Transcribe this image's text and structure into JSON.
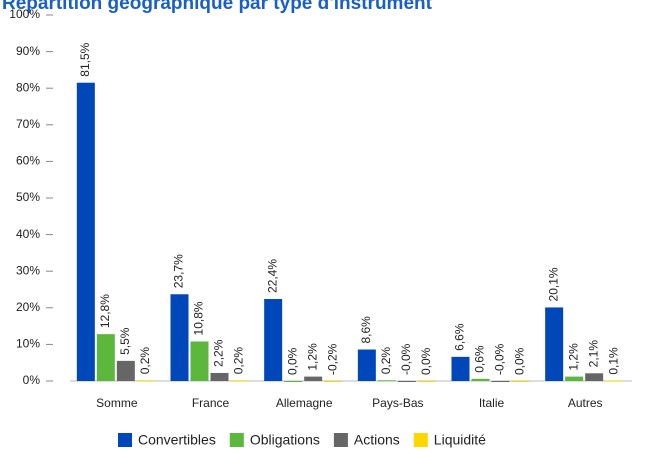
{
  "chart_data": {
    "type": "bar",
    "title": "Répartition géographique par type d'instrument",
    "categories": [
      "Somme",
      "France",
      "Allemagne",
      "Pays-Bas",
      "Italie",
      "Autres"
    ],
    "series": [
      {
        "name": "Convertibles",
        "color": "#0047ba",
        "values": [
          81.5,
          23.7,
          22.4,
          8.6,
          6.6,
          20.1
        ],
        "value_labels": [
          "81,5%",
          "23,7%",
          "22,4%",
          "8,6%",
          "6,6%",
          "20,1%"
        ]
      },
      {
        "name": "Obligations",
        "color": "#5cb83c",
        "values": [
          12.8,
          10.8,
          0.0,
          0.2,
          0.6,
          1.2
        ],
        "value_labels": [
          "12,8%",
          "10,8%",
          "0,0%",
          "0,2%",
          "0,6%",
          "1,2%"
        ]
      },
      {
        "name": "Actions",
        "color": "#666666",
        "values": [
          5.5,
          2.2,
          1.2,
          -0.0,
          -0.0,
          2.1
        ],
        "value_labels": [
          "5,5%",
          "2,2%",
          "1,2%",
          "-0,0%",
          "-0,0%",
          "2,1%"
        ]
      },
      {
        "name": "Liquidité",
        "color": "#ffd700",
        "values": [
          0.2,
          0.2,
          -0.2,
          0.0,
          0.0,
          0.1
        ],
        "value_labels": [
          "0,2%",
          "0,2%",
          "-0,2%",
          "0,0%",
          "0,0%",
          "0,1%"
        ]
      }
    ],
    "ylim": [
      0,
      100
    ],
    "yticks": [
      {
        "value": 0,
        "label": "0%"
      },
      {
        "value": 10,
        "label": "10%"
      },
      {
        "value": 20,
        "label": "20%"
      },
      {
        "value": 30,
        "label": "30%"
      },
      {
        "value": 40,
        "label": "40%"
      },
      {
        "value": 50,
        "label": "50%"
      },
      {
        "value": 60,
        "label": "60%"
      },
      {
        "value": 70,
        "label": "70%"
      },
      {
        "value": 80,
        "label": "80%"
      },
      {
        "value": 90,
        "label": "90%"
      },
      {
        "value": 100,
        "label": "100%"
      }
    ],
    "grid": false,
    "legend": "bottom"
  }
}
